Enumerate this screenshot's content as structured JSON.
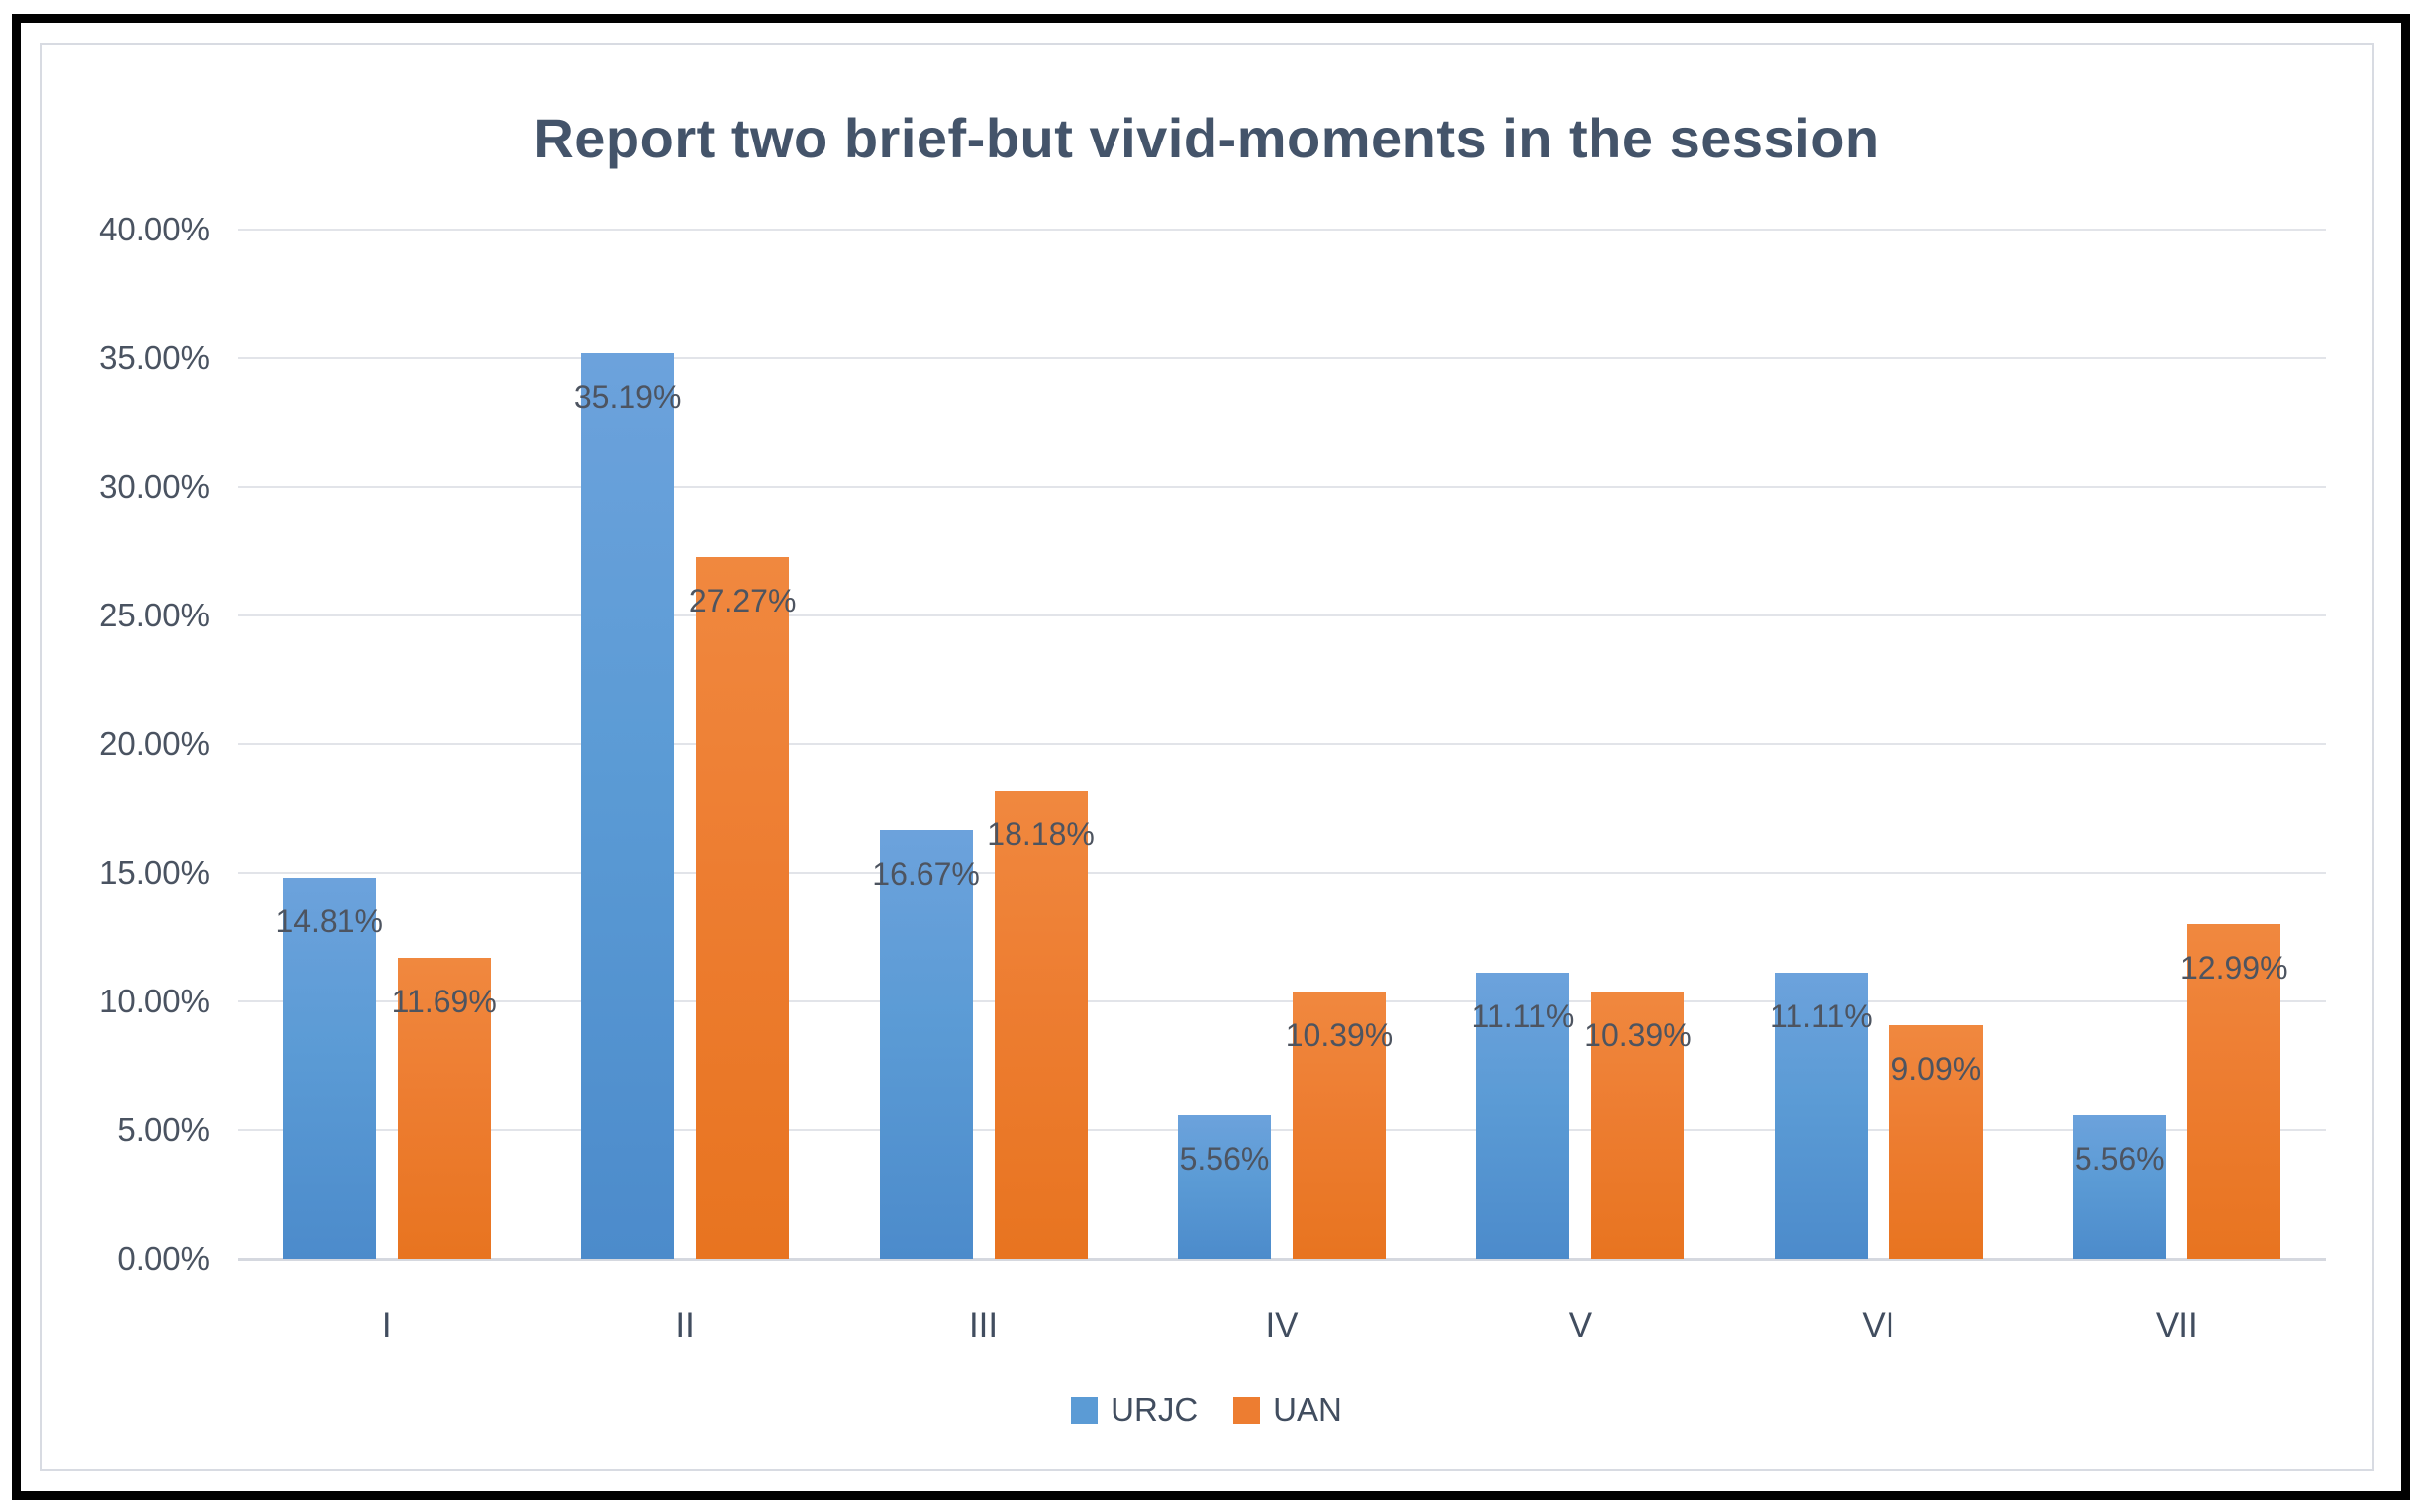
{
  "chart_data": {
    "type": "bar",
    "title": "Report two brief-but vivid-moments in the session",
    "categories": [
      "I",
      "II",
      "III",
      "IV",
      "V",
      "VI",
      "VII"
    ],
    "series": [
      {
        "name": "URJC",
        "color": "#5B9BD5",
        "values": [
          14.81,
          35.19,
          16.67,
          5.56,
          11.11,
          11.11,
          5.56
        ],
        "labels": [
          "14.81%",
          "35.19%",
          "16.67%",
          "5.56%",
          "11.11%",
          "11.11%",
          "5.56%"
        ]
      },
      {
        "name": "UAN",
        "color": "#ED7D31",
        "values": [
          11.69,
          27.27,
          18.18,
          10.39,
          10.39,
          9.09,
          12.99
        ],
        "labels": [
          "11.69%",
          "27.27%",
          "18.18%",
          "10.39%",
          "10.39%",
          "9.09%",
          "12.99%"
        ]
      }
    ],
    "xlabel": "",
    "ylabel": "",
    "ylim": [
      0,
      40
    ],
    "ytick_step": 5,
    "ytick_labels": [
      "0.00%",
      "5.00%",
      "10.00%",
      "15.00%",
      "20.00%",
      "25.00%",
      "30.00%",
      "35.00%",
      "40.00%"
    ],
    "grid": true,
    "legend_position": "bottom",
    "colors": {
      "title_text": "#44546A",
      "axis_text": "#4a5361",
      "data_label_text": "#4d5460",
      "gridline": "#e2e4e9",
      "chart_border": "#d8dbe2",
      "frame_border": "#010101",
      "series_blue": "#5B9BD5",
      "series_orange": "#ED7D31"
    }
  }
}
